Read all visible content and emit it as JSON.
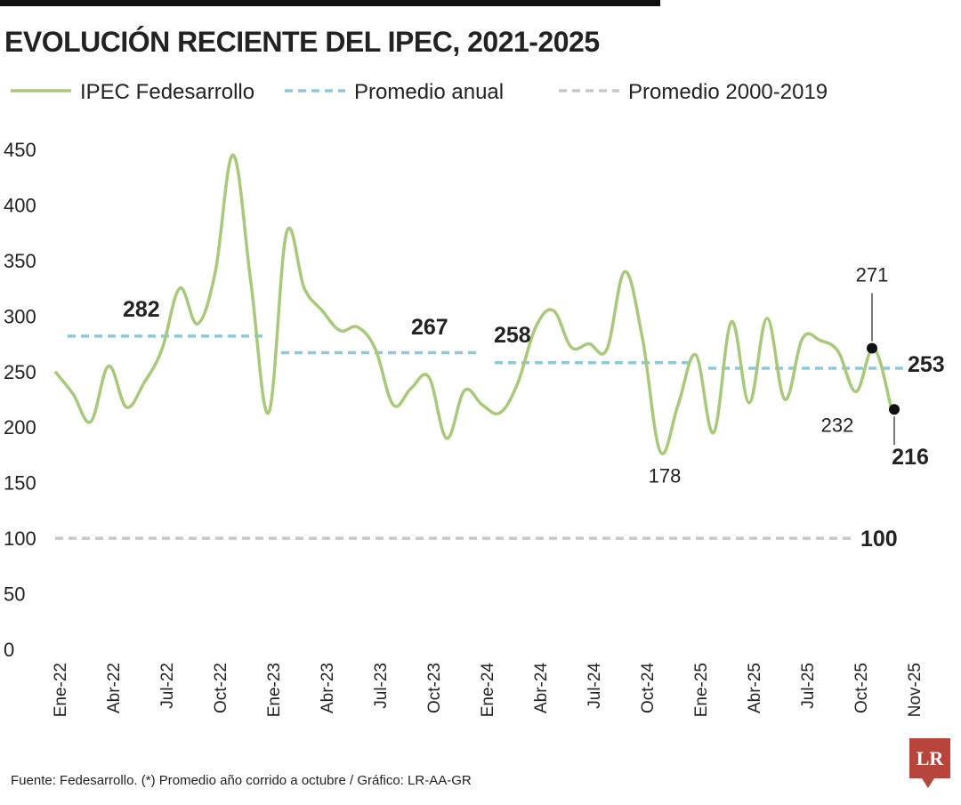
{
  "chart_data": {
    "type": "line",
    "title": "EVOLUCIÓN RECIENTE DEL IPEC, 2021-2025",
    "source": "Fuente: Fedesarrollo. (*) Promedio año corrido a octubre / Gráfico: LR-AA-GR",
    "categories": [
      "Ene-22",
      null,
      null,
      "Abr-22",
      null,
      null,
      "Jul-22",
      null,
      null,
      "Oct-22",
      null,
      null,
      "Ene-23",
      null,
      null,
      "Abr-23",
      null,
      null,
      "Jul-23",
      null,
      null,
      "Oct-23",
      null,
      null,
      "Ene-24",
      null,
      null,
      "Abr-24",
      null,
      null,
      "Jul-24",
      null,
      null,
      "Oct-24",
      null,
      null,
      "Ene-25",
      null,
      null,
      "Abr-25",
      null,
      null,
      "Jul-25",
      null,
      null,
      "Oct-25",
      null,
      null,
      "Nov-25"
    ],
    "ylim": [
      0,
      450
    ],
    "yticks": [
      0,
      50,
      100,
      150,
      200,
      250,
      300,
      350,
      400,
      450
    ],
    "grid": false,
    "legend": "top",
    "series": [
      {
        "name": "IPEC Fedesarrollo",
        "color": "#a9c97a",
        "dash": "solid",
        "values": [
          250,
          230,
          205,
          255,
          218,
          240,
          270,
          325,
          293,
          340,
          445,
          330,
          213,
          375,
          325,
          305,
          287,
          290,
          270,
          220,
          235,
          245,
          190,
          233,
          220,
          213,
          240,
          290,
          305,
          272,
          275,
          270,
          340,
          280,
          178,
          220,
          265,
          195,
          295,
          222,
          298,
          225,
          280,
          278,
          268,
          232,
          271,
          216,
          null
        ]
      },
      {
        "name": "Promedio anual",
        "color": "#8fc9d9",
        "dash": "dashed",
        "values": [
          282,
          282,
          282,
          282,
          282,
          282,
          282,
          282,
          282,
          282,
          282,
          282,
          267,
          267,
          267,
          267,
          267,
          267,
          267,
          267,
          267,
          267,
          267,
          267,
          258,
          258,
          258,
          258,
          258,
          258,
          258,
          258,
          258,
          258,
          258,
          258,
          253,
          253,
          253,
          253,
          253,
          253,
          253,
          253,
          253,
          253,
          253,
          253,
          null
        ]
      },
      {
        "name": "Promedio 2000-2019",
        "color": "#c8c8c8",
        "dash": "dashed",
        "values": [
          100,
          100,
          100,
          100,
          100,
          100,
          100,
          100,
          100,
          100,
          100,
          100,
          100,
          100,
          100,
          100,
          100,
          100,
          100,
          100,
          100,
          100,
          100,
          100,
          100,
          100,
          100,
          100,
          100,
          100,
          100,
          100,
          100,
          100,
          100,
          100,
          100,
          100,
          100,
          100,
          100,
          100,
          100,
          100,
          100,
          100,
          null,
          null,
          null
        ]
      }
    ]
  }
}
